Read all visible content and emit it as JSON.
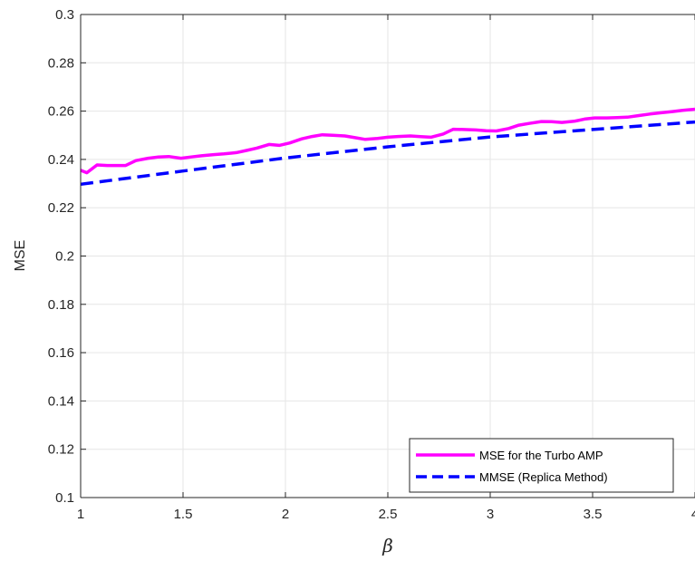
{
  "chart_data": {
    "type": "line",
    "title": "",
    "xlabel": "β",
    "ylabel": "MSE",
    "xlim": [
      1,
      4
    ],
    "ylim": [
      0.1,
      0.3
    ],
    "grid": true,
    "legend_position": "bottom-right",
    "x_ticks": [
      1,
      1.5,
      2,
      2.5,
      3,
      3.5,
      4
    ],
    "x_tick_labels": [
      "1",
      "1.5",
      "2",
      "2.5",
      "3",
      "3.5",
      "4"
    ],
    "y_ticks": [
      0.1,
      0.12,
      0.14,
      0.16,
      0.18,
      0.2,
      0.22,
      0.24,
      0.26,
      0.28,
      0.3
    ],
    "y_tick_labels": [
      "0.1",
      "0.12",
      "0.14",
      "0.16",
      "0.18",
      "0.2",
      "0.22",
      "0.24",
      "0.26",
      "0.28",
      "0.3"
    ],
    "series": [
      {
        "name": "MSE for the Turbo AMP",
        "color": "#ff00ff",
        "style": "solid",
        "x": [
          1.0,
          1.03,
          1.08,
          1.13,
          1.22,
          1.27,
          1.33,
          1.38,
          1.43,
          1.49,
          1.54,
          1.59,
          1.65,
          1.7,
          1.76,
          1.81,
          1.86,
          1.92,
          1.97,
          2.02,
          2.08,
          2.13,
          2.18,
          2.23,
          2.29,
          2.34,
          2.39,
          2.45,
          2.5,
          2.55,
          2.61,
          2.66,
          2.71,
          2.77,
          2.82,
          2.87,
          2.93,
          2.98,
          3.03,
          3.09,
          3.14,
          3.19,
          3.25,
          3.3,
          3.35,
          3.41,
          3.46,
          3.51,
          3.57,
          3.62,
          3.67,
          3.73,
          3.78,
          3.83,
          3.89,
          3.94,
          4.0
        ],
        "y": [
          0.2355,
          0.2345,
          0.2377,
          0.2375,
          0.2375,
          0.2395,
          0.2405,
          0.241,
          0.2412,
          0.2405,
          0.241,
          0.2415,
          0.242,
          0.2423,
          0.2428,
          0.2437,
          0.2447,
          0.2462,
          0.2458,
          0.2468,
          0.2485,
          0.2495,
          0.2502,
          0.25,
          0.2497,
          0.249,
          0.2483,
          0.2487,
          0.2492,
          0.2495,
          0.2497,
          0.2494,
          0.2492,
          0.2505,
          0.2525,
          0.2524,
          0.2522,
          0.2519,
          0.2518,
          0.2528,
          0.2542,
          0.2549,
          0.2557,
          0.2556,
          0.2553,
          0.2558,
          0.2567,
          0.2572,
          0.2572,
          0.2573,
          0.2575,
          0.2582,
          0.2588,
          0.2593,
          0.2598,
          0.2603,
          0.2608
        ]
      },
      {
        "name": "MMSE (Replica Method)",
        "color": "#0000ff",
        "style": "dashed",
        "x": [
          1.0,
          1.5,
          2.0,
          2.5,
          3.0,
          3.5,
          4.0
        ],
        "y": [
          0.2297,
          0.2352,
          0.2406,
          0.2452,
          0.2493,
          0.2524,
          0.2555
        ]
      }
    ]
  }
}
